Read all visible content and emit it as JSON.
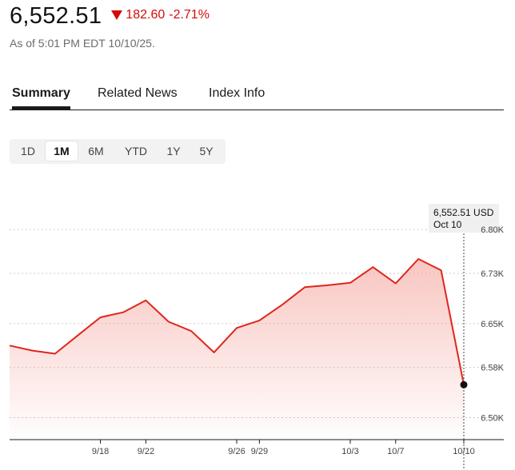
{
  "quote": {
    "price": "6,552.51",
    "change": "182.60",
    "change_pct": "-2.71%",
    "direction": "down",
    "as_of": "As of 5:01 PM EDT 10/10/25."
  },
  "tabs": [
    {
      "label": "Summary",
      "active": true
    },
    {
      "label": "Related News",
      "active": false
    },
    {
      "label": "Index Info",
      "active": false
    }
  ],
  "ranges": [
    {
      "label": "1D",
      "active": false
    },
    {
      "label": "1M",
      "active": true
    },
    {
      "label": "6M",
      "active": false
    },
    {
      "label": "YTD",
      "active": false
    },
    {
      "label": "1Y",
      "active": false
    },
    {
      "label": "5Y",
      "active": false
    }
  ],
  "tooltip": {
    "value": "6,552.51 USD",
    "date": "Oct 10"
  },
  "colors": {
    "down": "#d50a0a",
    "line": "#e0261c",
    "fill": "#f6b3ad"
  },
  "chart_data": {
    "type": "area",
    "y_tick_labels": [
      "6.80K",
      "6.73K",
      "6.65K",
      "6.58K",
      "6.50K"
    ],
    "y_ticks": [
      6800,
      6730,
      6650,
      6580,
      6500
    ],
    "x_tick_labels": [
      "9/18",
      "9/22",
      "9/26",
      "9/29",
      "10/3",
      "10/7",
      "10/10"
    ],
    "x_tick_dates": [
      "2025-09-18",
      "2025-09-22",
      "2025-09-26",
      "2025-09-29",
      "2025-10-03",
      "2025-10-07",
      "2025-10-10"
    ],
    "ylim": [
      6465,
      6860
    ],
    "xlim": [
      "2025-09-12",
      "2025-10-10"
    ],
    "grid": true,
    "points": [
      {
        "x": "2025-09-12",
        "y": 6615
      },
      {
        "x": "2025-09-15",
        "y": 6607
      },
      {
        "x": "2025-09-16",
        "y": 6602
      },
      {
        "x": "2025-09-17",
        "y": 6631
      },
      {
        "x": "2025-09-18",
        "y": 6660
      },
      {
        "x": "2025-09-19",
        "y": 6668
      },
      {
        "x": "2025-09-22",
        "y": 6687
      },
      {
        "x": "2025-09-23",
        "y": 6653
      },
      {
        "x": "2025-09-24",
        "y": 6638
      },
      {
        "x": "2025-09-25",
        "y": 6604
      },
      {
        "x": "2025-09-26",
        "y": 6643
      },
      {
        "x": "2025-09-29",
        "y": 6655
      },
      {
        "x": "2025-09-30",
        "y": 6680
      },
      {
        "x": "2025-10-01",
        "y": 6708
      },
      {
        "x": "2025-10-02",
        "y": 6711
      },
      {
        "x": "2025-10-03",
        "y": 6715
      },
      {
        "x": "2025-10-06",
        "y": 6740
      },
      {
        "x": "2025-10-07",
        "y": 6714
      },
      {
        "x": "2025-10-08",
        "y": 6753
      },
      {
        "x": "2025-10-09",
        "y": 6735
      },
      {
        "x": "2025-10-10",
        "y": 6552.51
      }
    ]
  }
}
